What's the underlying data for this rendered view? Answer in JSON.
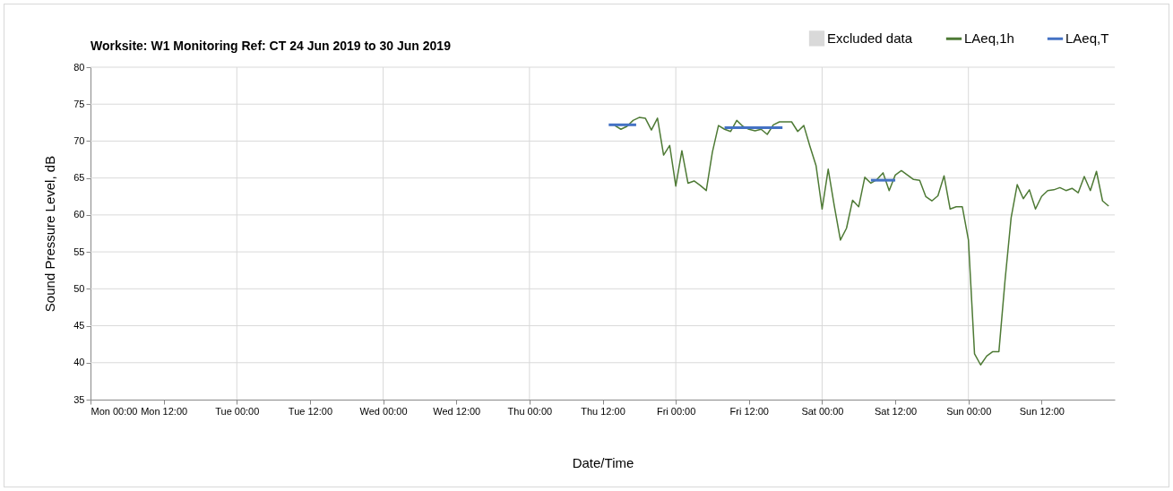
{
  "chart_data": {
    "type": "line",
    "title": "Worksite: W1    Monitoring Ref: CT     24 Jun 2019 to 30 Jun 2019",
    "xlabel": "Date/Time",
    "ylabel": "Sound Pressure Level, dB",
    "xlim": [
      "2019-06-24T00:00",
      "2019-07-01T00:00"
    ],
    "ylim": [
      35,
      80
    ],
    "xticks": [
      {
        "value": "2019-06-24T00:00",
        "label": "Mon 00:00"
      },
      {
        "value": "2019-06-24T12:00",
        "label": "Mon 12:00"
      },
      {
        "value": "2019-06-25T00:00",
        "label": "Tue 00:00"
      },
      {
        "value": "2019-06-25T12:00",
        "label": "Tue 12:00"
      },
      {
        "value": "2019-06-26T00:00",
        "label": "Wed 00:00"
      },
      {
        "value": "2019-06-26T12:00",
        "label": "Wed 12:00"
      },
      {
        "value": "2019-06-27T00:00",
        "label": "Thu 00:00"
      },
      {
        "value": "2019-06-27T12:00",
        "label": "Thu 12:00"
      },
      {
        "value": "2019-06-28T00:00",
        "label": "Fri 00:00"
      },
      {
        "value": "2019-06-28T12:00",
        "label": "Fri 12:00"
      },
      {
        "value": "2019-06-29T00:00",
        "label": "Sat 00:00"
      },
      {
        "value": "2019-06-29T12:00",
        "label": "Sat 12:00"
      },
      {
        "value": "2019-06-30T00:00",
        "label": "Sun 00:00"
      },
      {
        "value": "2019-06-30T12:00",
        "label": "Sun 12:00"
      }
    ],
    "yticks": [
      35,
      40,
      45,
      50,
      55,
      60,
      65,
      70,
      75,
      80
    ],
    "grid": true,
    "legend": "top right",
    "series": [
      {
        "name": "Excluded data",
        "type": "area",
        "color": "#d9d9d9"
      },
      {
        "name": "LAeq,1h",
        "color": "#4e7a35",
        "x": [
          "2019-06-27T14:00",
          "2019-06-27T15:00",
          "2019-06-27T16:00",
          "2019-06-27T17:00",
          "2019-06-27T18:00",
          "2019-06-27T19:00",
          "2019-06-27T20:00",
          "2019-06-27T21:00",
          "2019-06-27T22:00",
          "2019-06-27T23:00",
          "2019-06-28T00:00",
          "2019-06-28T01:00",
          "2019-06-28T02:00",
          "2019-06-28T03:00",
          "2019-06-28T04:00",
          "2019-06-28T05:00",
          "2019-06-28T06:00",
          "2019-06-28T07:00",
          "2019-06-28T08:00",
          "2019-06-28T09:00",
          "2019-06-28T10:00",
          "2019-06-28T11:00",
          "2019-06-28T12:00",
          "2019-06-28T13:00",
          "2019-06-28T14:00",
          "2019-06-28T15:00",
          "2019-06-28T16:00",
          "2019-06-28T17:00",
          "2019-06-28T18:00",
          "2019-06-28T19:00",
          "2019-06-28T20:00",
          "2019-06-28T21:00",
          "2019-06-28T22:00",
          "2019-06-28T23:00",
          "2019-06-29T00:00",
          "2019-06-29T01:00",
          "2019-06-29T02:00",
          "2019-06-29T03:00",
          "2019-06-29T04:00",
          "2019-06-29T05:00",
          "2019-06-29T06:00",
          "2019-06-29T07:00",
          "2019-06-29T08:00",
          "2019-06-29T09:00",
          "2019-06-29T10:00",
          "2019-06-29T11:00",
          "2019-06-29T12:00",
          "2019-06-29T13:00",
          "2019-06-29T14:00",
          "2019-06-29T15:00",
          "2019-06-29T16:00",
          "2019-06-29T17:00",
          "2019-06-29T18:00",
          "2019-06-29T19:00",
          "2019-06-29T20:00",
          "2019-06-29T21:00",
          "2019-06-29T22:00",
          "2019-06-29T23:00",
          "2019-06-30T00:00",
          "2019-06-30T01:00",
          "2019-06-30T02:00",
          "2019-06-30T03:00",
          "2019-06-30T04:00",
          "2019-06-30T05:00",
          "2019-06-30T06:00",
          "2019-06-30T07:00",
          "2019-06-30T08:00",
          "2019-06-30T09:00",
          "2019-06-30T10:00",
          "2019-06-30T11:00",
          "2019-06-30T12:00",
          "2019-06-30T13:00",
          "2019-06-30T14:00",
          "2019-06-30T15:00",
          "2019-06-30T16:00",
          "2019-06-30T17:00",
          "2019-06-30T18:00",
          "2019-06-30T19:00",
          "2019-06-30T20:00",
          "2019-06-30T21:00",
          "2019-06-30T22:00",
          "2019-06-30T23:00"
        ],
        "values": [
          72.1,
          71.6,
          72.0,
          72.8,
          73.2,
          73.1,
          71.5,
          73.1,
          68.1,
          69.4,
          63.9,
          68.7,
          64.3,
          64.6,
          64.0,
          63.3,
          68.5,
          72.1,
          71.6,
          71.3,
          72.8,
          72.0,
          71.6,
          71.4,
          71.6,
          70.9,
          72.2,
          72.6,
          72.6,
          72.6,
          71.3,
          72.1,
          69.3,
          66.7,
          60.8,
          66.2,
          61.2,
          56.6,
          58.2,
          62.0,
          61.1,
          65.1,
          64.3,
          64.8,
          65.7,
          63.3,
          65.4,
          66.0,
          65.4,
          64.8,
          64.7,
          62.5,
          61.9,
          62.6,
          65.3,
          60.8,
          61.1,
          61.1,
          56.6,
          41.2,
          39.7,
          40.9,
          41.5,
          41.5,
          51.1,
          59.6,
          64.1,
          62.2,
          63.4,
          60.8,
          62.5,
          63.3,
          63.4,
          63.7,
          63.3,
          63.6,
          63.0,
          65.2,
          63.3,
          65.9,
          61.9,
          61.2
        ]
      },
      {
        "name": "LAeq,T",
        "color": "#4472c4",
        "x": [
          "2019-06-27T13:00",
          "2019-06-27T17:30",
          null,
          "2019-06-28T08:00",
          "2019-06-28T17:30",
          null,
          "2019-06-29T08:00",
          "2019-06-29T12:00"
        ],
        "values": [
          72.2,
          72.2,
          null,
          71.8,
          71.8,
          null,
          64.7,
          64.7
        ]
      }
    ]
  }
}
